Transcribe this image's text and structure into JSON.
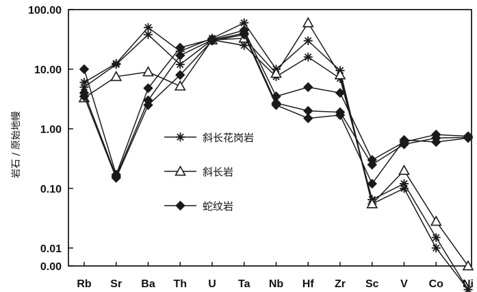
{
  "chart_data": {
    "type": "line",
    "ylabel": "岩石 / 原始地幔",
    "y_scale": "log",
    "ylim": [
      0.005,
      100
    ],
    "y_tick_values": [
      0.005,
      0.01,
      0.1,
      1,
      10,
      100
    ],
    "y_tick_labels": [
      "0.00",
      "0.01",
      "0.10",
      "1.00",
      "10.00",
      "100.00"
    ],
    "categories": [
      "Rb",
      "Sr",
      "Ba",
      "Th",
      "U",
      "Ta",
      "Nb",
      "Hf",
      "Zr",
      "Sc",
      "V",
      "Co",
      "Ni"
    ],
    "legend_position": "center-left",
    "series": [
      {
        "name": "斜长花岗岩",
        "marker": "asterisk",
        "values": [
          6,
          12.5,
          50,
          20,
          33,
          60,
          10,
          30,
          9.5,
          0.055,
          0.1,
          0.01,
          0.002
        ]
      },
      {
        "name": "斜长花岗岩",
        "marker": "asterisk",
        "values": [
          5,
          12,
          38,
          12,
          31,
          25,
          7.5,
          16,
          7,
          0.065,
          0.12,
          0.015,
          0.002
        ]
      },
      {
        "name": "斜长岩",
        "marker": "triangle",
        "values": [
          3.3,
          7.5,
          9,
          5.2,
          31,
          33,
          8.5,
          60,
          8,
          0.055,
          0.2,
          0.028,
          0.005
        ]
      },
      {
        "name": "蛇纹岩",
        "marker": "diamond",
        "values": [
          10,
          0.17,
          4.8,
          23,
          32,
          45,
          3.5,
          5,
          4,
          0.3,
          0.6,
          0.8,
          0.75
        ]
      },
      {
        "name": "蛇纹岩",
        "marker": "diamond",
        "values": [
          4,
          0.16,
          3,
          17,
          31,
          40,
          2.7,
          2,
          1.9,
          0.25,
          0.55,
          0.7,
          0.72
        ]
      },
      {
        "name": "蛇纹岩",
        "marker": "diamond",
        "values": [
          3.5,
          0.15,
          2.5,
          8,
          30,
          38,
          2.5,
          1.5,
          1.7,
          0.12,
          0.65,
          0.6,
          0.7
        ]
      }
    ]
  },
  "legend": [
    {
      "label": "斜长花岗岩",
      "marker": "asterisk"
    },
    {
      "label": "斜长岩",
      "marker": "triangle"
    },
    {
      "label": "蛇纹岩",
      "marker": "diamond"
    }
  ],
  "colors": {
    "line": "#1a1a1a",
    "axis": "#000000",
    "background": "#ffffff"
  }
}
